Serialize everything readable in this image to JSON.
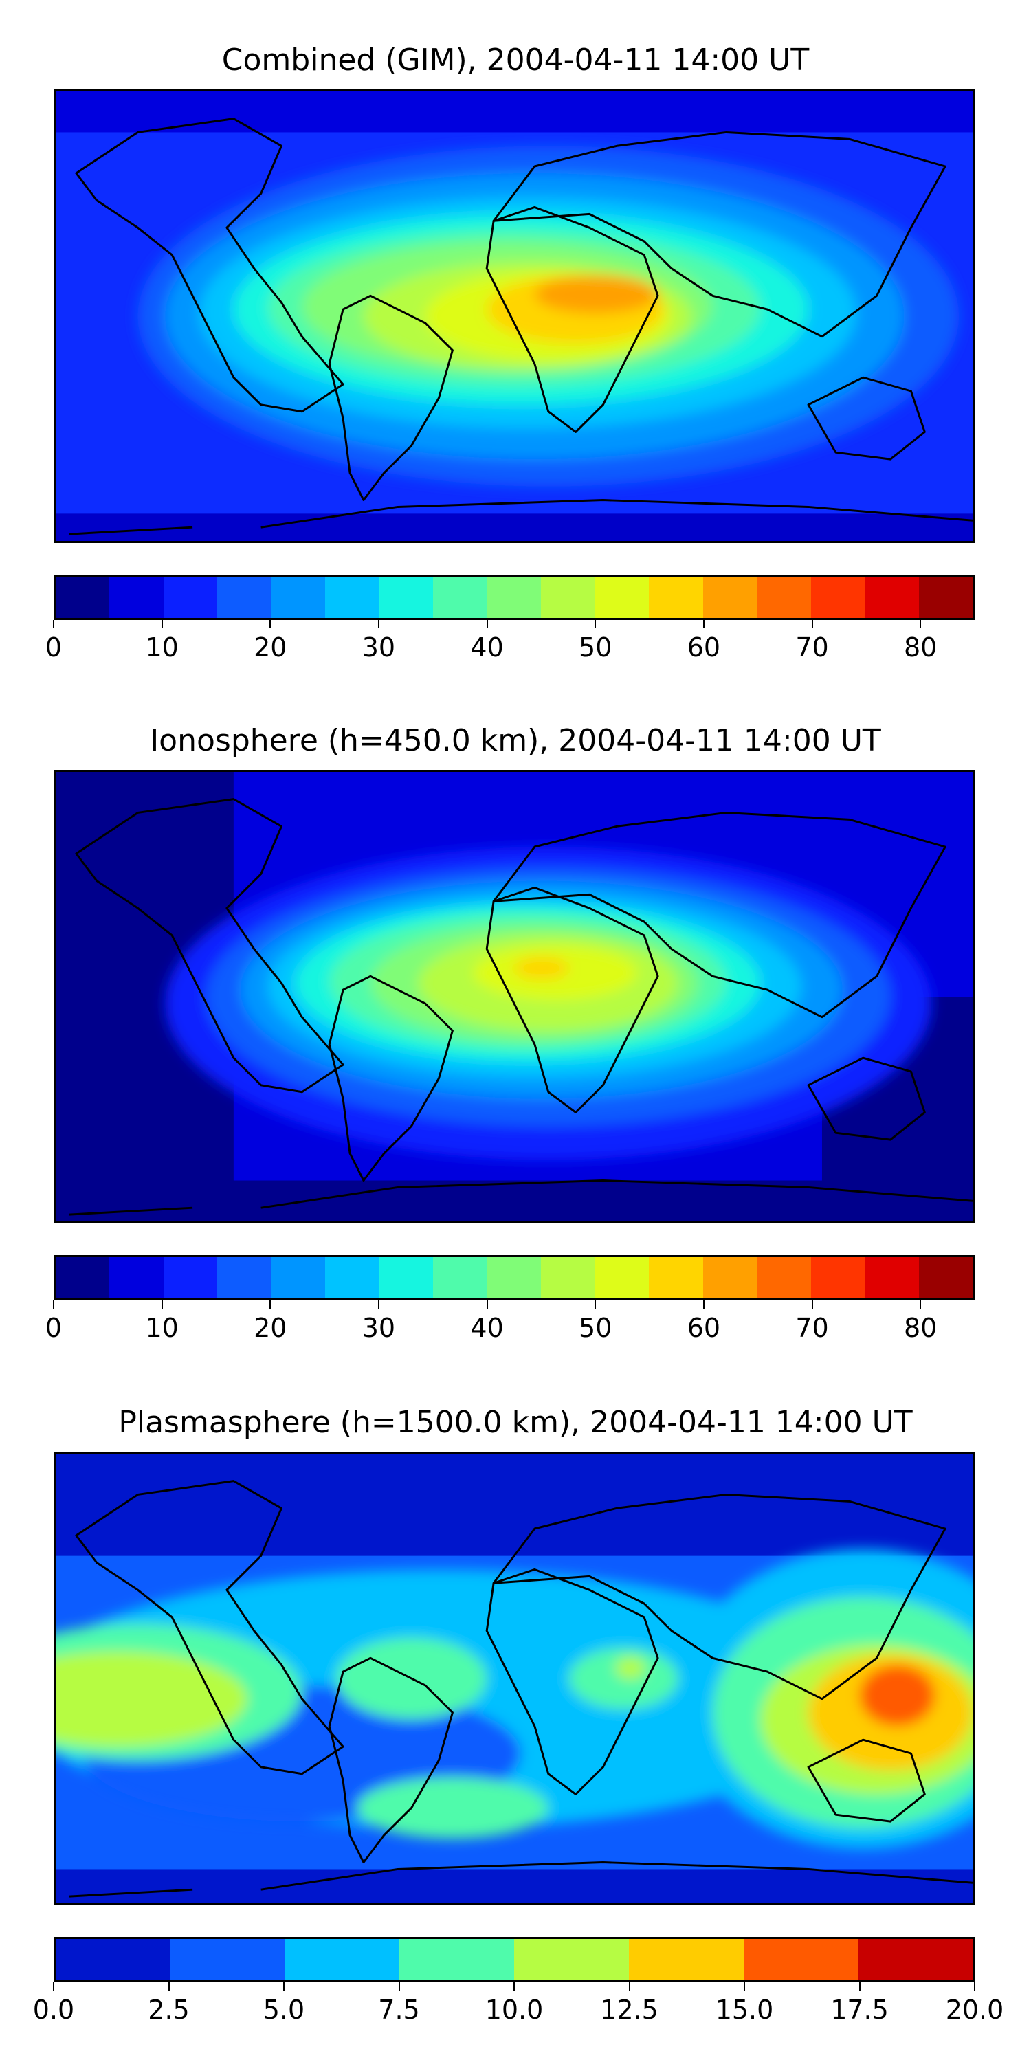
{
  "panels": [
    {
      "title": "Combined (GIM), 2004-04-11 14:00 UT",
      "map_type": "global",
      "colorbar": {
        "colors": [
          "#00008c",
          "#0000de",
          "#0b20ff",
          "#0d5cff",
          "#0095ff",
          "#00c3ff",
          "#16f5e0",
          "#4ffbab",
          "#80fc77",
          "#b6fc43",
          "#defc19",
          "#ffd500",
          "#ffa000",
          "#ff6800",
          "#ff3500",
          "#e00000",
          "#9a0000"
        ],
        "tick_labels": [
          "0",
          "10",
          "20",
          "30",
          "40",
          "50",
          "60",
          "70",
          "80"
        ],
        "tick_values": [
          0,
          10,
          20,
          30,
          40,
          50,
          60,
          70,
          80
        ],
        "range": [
          0,
          85
        ]
      }
    },
    {
      "title": "Ionosphere  (h=450.0 km), 2004-04-11 14:00 UT",
      "map_type": "global",
      "colorbar": {
        "colors": [
          "#00008c",
          "#0000de",
          "#0b20ff",
          "#0d5cff",
          "#0095ff",
          "#00c3ff",
          "#16f5e0",
          "#4ffbab",
          "#80fc77",
          "#b6fc43",
          "#defc19",
          "#ffd500",
          "#ffa000",
          "#ff6800",
          "#ff3500",
          "#e00000",
          "#9a0000"
        ],
        "tick_labels": [
          "0",
          "10",
          "20",
          "30",
          "40",
          "50",
          "60",
          "70",
          "80"
        ],
        "tick_values": [
          0,
          10,
          20,
          30,
          40,
          50,
          60,
          70,
          80
        ],
        "range": [
          0,
          85
        ]
      }
    },
    {
      "title": "Plasmasphere (h=1500.0 km), 2004-04-11 14:00 UT",
      "map_type": "global",
      "colorbar": {
        "colors": [
          "#0016cc",
          "#0c5cff",
          "#00c0ff",
          "#4ffbab",
          "#b6fc43",
          "#ffcc00",
          "#ff5a00",
          "#c80000"
        ],
        "tick_labels": [
          "0.0",
          "2.5",
          "5.0",
          "7.5",
          "10.0",
          "12.5",
          "15.0",
          "17.5",
          "20.0"
        ],
        "tick_values": [
          0,
          2.5,
          5,
          7.5,
          10,
          12.5,
          15,
          17.5,
          20
        ],
        "range": [
          0,
          20
        ]
      }
    }
  ]
}
